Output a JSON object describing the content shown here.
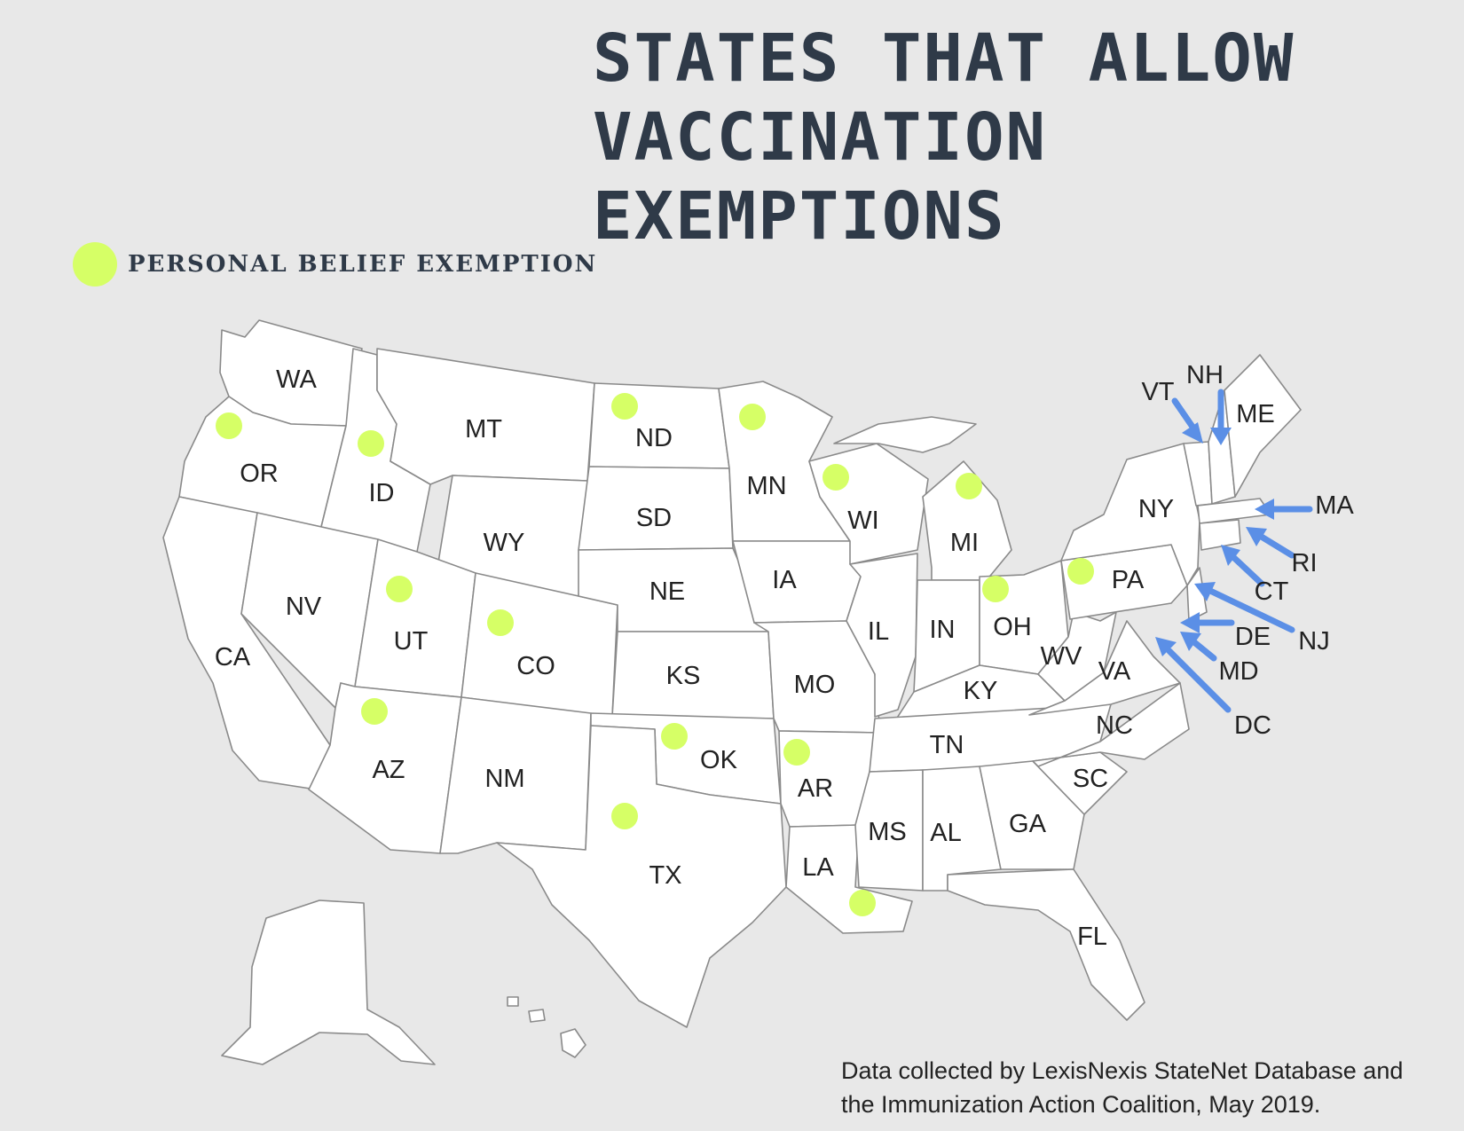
{
  "title": {
    "line1": "STATES THAT ALLOW",
    "line2": "VACCINATION",
    "line3": "EXEMPTIONS"
  },
  "legend": {
    "label": "PERSONAL BELIEF EXEMPTION",
    "color": "#d6ff66"
  },
  "source": {
    "line1": "Data collected by LexisNexis StateNet Database and",
    "line2": "the Immunization Action Coalition, May 2019."
  },
  "states": {
    "WA": "WA",
    "OR": "OR",
    "CA": "CA",
    "ID": "ID",
    "NV": "NV",
    "MT": "MT",
    "WY": "WY",
    "UT": "UT",
    "AZ": "AZ",
    "CO": "CO",
    "NM": "NM",
    "ND": "ND",
    "SD": "SD",
    "NE": "NE",
    "KS": "KS",
    "OK": "OK",
    "TX": "TX",
    "MN": "MN",
    "IA": "IA",
    "MO": "MO",
    "AR": "AR",
    "LA": "LA",
    "WI": "WI",
    "IL": "IL",
    "MI": "MI",
    "IN": "IN",
    "OH": "OH",
    "KY": "KY",
    "TN": "TN",
    "MS": "MS",
    "AL": "AL",
    "GA": "GA",
    "FL": "FL",
    "SC": "SC",
    "NC": "NC",
    "VA": "VA",
    "WV": "WV",
    "PA": "PA",
    "NY": "NY",
    "ME": "ME"
  },
  "callouts": {
    "VT": "VT",
    "NH": "NH",
    "MA": "MA",
    "RI": "RI",
    "CT": "CT",
    "NJ": "NJ",
    "DE": "DE",
    "MD": "MD",
    "DC": "DC"
  },
  "personal_belief_exemption_states": [
    "OR",
    "ID",
    "UT",
    "AZ",
    "CO",
    "ND",
    "MN",
    "WI",
    "MI",
    "OH",
    "PA",
    "OK",
    "TX",
    "AR",
    "LA"
  ],
  "arrow_color": "#5b8fe6"
}
